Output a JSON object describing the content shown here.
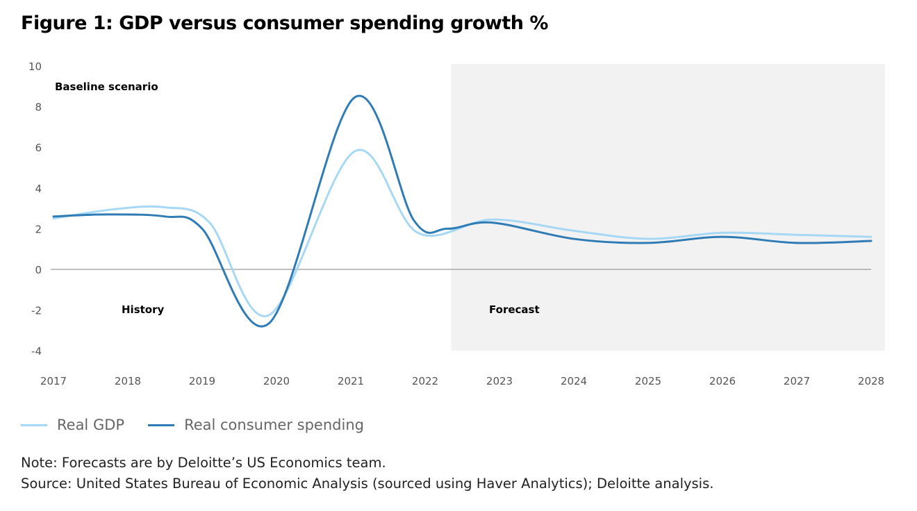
{
  "chart_data": {
    "type": "line",
    "title": "Figure 1: GDP versus consumer spending growth %",
    "xlabel": "",
    "ylabel": "",
    "xlim": [
      2017,
      2028
    ],
    "ylim": [
      -4,
      10
    ],
    "x_ticks": [
      "2017",
      "2018",
      "2019",
      "2020",
      "2021",
      "2022",
      "2023",
      "2024",
      "2025",
      "2026",
      "2027",
      "2028"
    ],
    "y_ticks": [
      "10",
      "8",
      "6",
      "4",
      "2",
      "0",
      "-2",
      "-4"
    ],
    "grid": false,
    "zero_line": true,
    "forecast_region": [
      2022.35,
      2028.2
    ],
    "annotations": {
      "scenario": "Baseline scenario",
      "history": "History",
      "forecast": "Forecast"
    },
    "legend_position": "bottom-left",
    "series": [
      {
        "name": "Real GDP",
        "color": "#a6d8f5",
        "x": [
          2017,
          2017.8,
          2018.5,
          2019.1,
          2019.9,
          2021.05,
          2021.9,
          2022.9,
          2024,
          2025,
          2026,
          2027,
          2028
        ],
        "y": [
          2.5,
          2.95,
          3.05,
          2.3,
          -2.25,
          5.8,
          1.8,
          2.45,
          1.9,
          1.5,
          1.8,
          1.7,
          1.6
        ]
      },
      {
        "name": "Real consumer spending",
        "color": "#2f7bb5",
        "x": [
          2017,
          2017.7,
          2018.5,
          2019,
          2019.9,
          2021.05,
          2021.85,
          2022.3,
          2022.9,
          2024,
          2025,
          2026,
          2027,
          2028
        ],
        "y": [
          2.6,
          2.7,
          2.6,
          2.0,
          -2.65,
          8.45,
          2.4,
          2.0,
          2.3,
          1.5,
          1.3,
          1.6,
          1.3,
          1.4
        ]
      }
    ]
  },
  "notes": {
    "note": "Note: Forecasts are by Deloitte’s US Economics team.",
    "source": "Source: United States Bureau of Economic Analysis (sourced using Haver Analytics); Deloitte analysis."
  }
}
